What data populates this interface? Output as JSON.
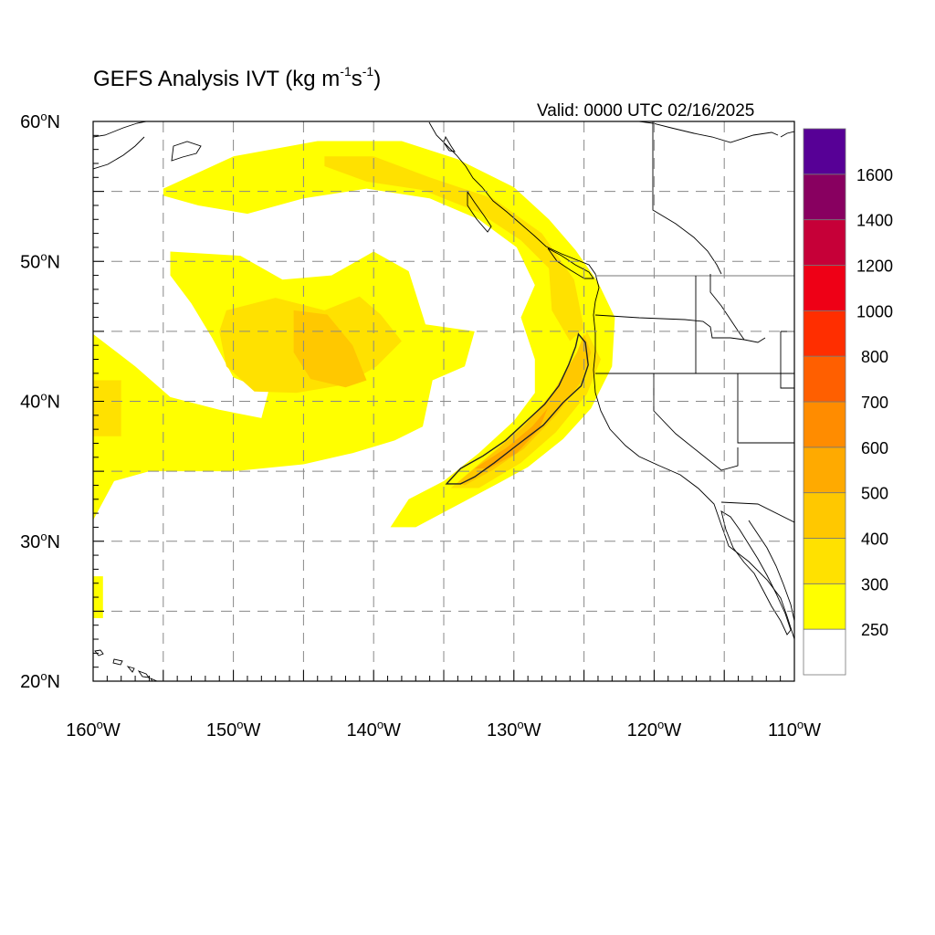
{
  "title": {
    "prefix": "GEFS Analysis IVT (kg m",
    "exp1": "-1",
    "mid": "s",
    "exp2": "-1",
    "suffix": ")"
  },
  "valid_time": "Valid: 0000 UTC 02/16/2025",
  "map": {
    "lon_range": [
      -160,
      -110
    ],
    "lat_range": [
      20,
      60
    ],
    "grid": "dashed, every 5 degrees",
    "lat_labels": [
      {
        "v": 60,
        "t": "60"
      },
      {
        "v": 50,
        "t": "50"
      },
      {
        "v": 40,
        "t": "40"
      },
      {
        "v": 30,
        "t": "30"
      },
      {
        "v": 20,
        "t": "20"
      }
    ],
    "lat_suffix": "N",
    "lon_labels": [
      {
        "v": -160,
        "t": "160"
      },
      {
        "v": -150,
        "t": "150"
      },
      {
        "v": -140,
        "t": "140"
      },
      {
        "v": -130,
        "t": "130"
      },
      {
        "v": -120,
        "t": "120"
      },
      {
        "v": -110,
        "t": "110"
      }
    ],
    "lon_suffix": "W",
    "degree_mark": "o"
  },
  "colorbar": {
    "colors": [
      "#ffffff",
      "#ffff00",
      "#ffe100",
      "#ffc800",
      "#ffaa00",
      "#ff8c00",
      "#ff5f00",
      "#ff2e00",
      "#ee0016",
      "#c60038",
      "#880060",
      "#570096"
    ],
    "labels": [
      "250",
      "300",
      "400",
      "500",
      "600",
      "700",
      "800",
      "1000",
      "1200",
      "1400",
      "1600"
    ]
  },
  "chart_data": {
    "type": "heatmap",
    "variable": "IVT (kg m-1 s-1)",
    "note": "filled IVT regions estimated from image, lon/lat in degrees",
    "regions": [
      {
        "name": "yellow-arc-north",
        "level": 250,
        "poly": [
          [
            -155,
            55.2
          ],
          [
            -150,
            57.5
          ],
          [
            -144,
            58.6
          ],
          [
            -138,
            58.6
          ],
          [
            -134,
            57.3
          ],
          [
            -130,
            55.3
          ],
          [
            -127.5,
            53
          ],
          [
            -125.6,
            50.8
          ],
          [
            -124,
            48.5
          ],
          [
            -122.8,
            46
          ],
          [
            -123,
            42.5
          ],
          [
            -124.5,
            39.5
          ],
          [
            -126.5,
            37.3
          ],
          [
            -129,
            35.3
          ],
          [
            -131,
            34.2
          ],
          [
            -134,
            32.6
          ],
          [
            -137,
            31
          ],
          [
            -138.8,
            31
          ],
          [
            -137.5,
            33
          ],
          [
            -135,
            34.3
          ],
          [
            -132.5,
            36.3
          ],
          [
            -130,
            38.6
          ],
          [
            -128.5,
            40.6
          ],
          [
            -128.5,
            43
          ],
          [
            -129.5,
            46
          ],
          [
            -128.5,
            48.3
          ],
          [
            -129.8,
            51
          ],
          [
            -132.5,
            53
          ],
          [
            -136,
            54.5
          ],
          [
            -140.5,
            55.2
          ],
          [
            -145,
            54.5
          ],
          [
            -149,
            53.4
          ],
          [
            -152.5,
            54
          ],
          [
            -155,
            54.7
          ]
        ]
      },
      {
        "name": "yellow-central-blob",
        "level": 250,
        "poly": [
          [
            -154.5,
            50.7
          ],
          [
            -149.5,
            50.4
          ],
          [
            -146.5,
            48.7
          ],
          [
            -143,
            49
          ],
          [
            -140,
            50.7
          ],
          [
            -137.5,
            49.3
          ],
          [
            -136.3,
            45.5
          ],
          [
            -132.8,
            45
          ],
          [
            -133.5,
            42.5
          ],
          [
            -135.8,
            41.5
          ],
          [
            -136.5,
            38.2
          ],
          [
            -138.5,
            37.2
          ],
          [
            -141.5,
            36.3
          ],
          [
            -145,
            35.5
          ],
          [
            -150,
            35
          ],
          [
            -156,
            35
          ],
          [
            -158.5,
            34.3
          ],
          [
            -160,
            31.5
          ],
          [
            -160,
            44.8
          ],
          [
            -157,
            42.5
          ],
          [
            -154.5,
            40.3
          ],
          [
            -151,
            39.4
          ],
          [
            -148,
            38.8
          ],
          [
            -147.5,
            40.7
          ],
          [
            -150,
            41.7
          ],
          [
            -151.5,
            44.5
          ],
          [
            -153,
            47
          ],
          [
            -154.5,
            49
          ]
        ]
      },
      {
        "name": "yellow-small-strip",
        "level": 250,
        "poly": [
          [
            -160,
            27.5
          ],
          [
            -159.3,
            27.5
          ],
          [
            -159.3,
            24.5
          ],
          [
            -160,
            24.5
          ]
        ]
      },
      {
        "name": "gold-north-arc",
        "level": 300,
        "poly": [
          [
            -143.5,
            57.5
          ],
          [
            -140,
            57.5
          ],
          [
            -136,
            56
          ],
          [
            -131.5,
            54.5
          ],
          [
            -128,
            52
          ],
          [
            -125.7,
            48.7
          ],
          [
            -125,
            45.2
          ],
          [
            -126,
            44.3
          ],
          [
            -127.3,
            46.5
          ],
          [
            -127.5,
            49.5
          ],
          [
            -129.5,
            51.5
          ],
          [
            -132.5,
            53.5
          ],
          [
            -136.5,
            55.1
          ],
          [
            -140.5,
            55.7
          ],
          [
            -143.5,
            56.8
          ]
        ]
      },
      {
        "name": "gold-central",
        "level": 300,
        "poly": [
          [
            -150.5,
            46.5
          ],
          [
            -147,
            47.4
          ],
          [
            -143.5,
            46.5
          ],
          [
            -141,
            47.5
          ],
          [
            -139.5,
            46.2
          ],
          [
            -138,
            44.3
          ],
          [
            -139.8,
            42.5
          ],
          [
            -142,
            41.2
          ],
          [
            -145.5,
            40.6
          ],
          [
            -148.5,
            40.7
          ],
          [
            -150.5,
            42.5
          ],
          [
            -151,
            45
          ]
        ]
      },
      {
        "name": "gold-west-patch",
        "level": 300,
        "poly": [
          [
            -160,
            41.5
          ],
          [
            -158,
            41.5
          ],
          [
            -158,
            37.5
          ],
          [
            -160,
            37.5
          ]
        ]
      },
      {
        "name": "gold-ar-band",
        "level": 300,
        "poly": [
          [
            -134.5,
            33.8
          ],
          [
            -131,
            36.8
          ],
          [
            -128.5,
            39.2
          ],
          [
            -126,
            42
          ],
          [
            -124.8,
            45
          ],
          [
            -123.8,
            43
          ],
          [
            -124.8,
            40.5
          ],
          [
            -127,
            37.8
          ],
          [
            -129.5,
            35.6
          ],
          [
            -132.5,
            33.8
          ]
        ]
      },
      {
        "name": "orange-central",
        "level": 400,
        "poly": [
          [
            -145.7,
            46.5
          ],
          [
            -143.3,
            46.2
          ],
          [
            -141.5,
            44
          ],
          [
            -140.5,
            41.5
          ],
          [
            -142,
            41
          ],
          [
            -144.5,
            41.6
          ],
          [
            -145.7,
            43.5
          ]
        ]
      },
      {
        "name": "orange-ar",
        "level": 400,
        "poly": [
          [
            -134,
            34.2
          ],
          [
            -131.5,
            36.3
          ],
          [
            -129.3,
            38.2
          ],
          [
            -127.3,
            40.5
          ],
          [
            -125.5,
            43.5
          ],
          [
            -125,
            44.8
          ],
          [
            -124.5,
            43.5
          ],
          [
            -125.2,
            41.4
          ],
          [
            -127,
            39
          ],
          [
            -129.3,
            36.6
          ],
          [
            -131.5,
            35.1
          ],
          [
            -133.5,
            34
          ]
        ]
      },
      {
        "name": "dark-orange-core",
        "level": 500,
        "poly": [
          [
            -132.8,
            35.2
          ],
          [
            -130.5,
            36.7
          ],
          [
            -128.7,
            38.2
          ],
          [
            -127.6,
            39.5
          ],
          [
            -128.2,
            38
          ],
          [
            -129.8,
            36.3
          ],
          [
            -131.8,
            35.2
          ]
        ]
      }
    ],
    "contour": {
      "level": 500,
      "poly": [
        [
          -134.8,
          34.1
        ],
        [
          -133.8,
          35.2
        ],
        [
          -132.2,
          36.1
        ],
        [
          -130.6,
          37.2
        ],
        [
          -129.2,
          38.5
        ],
        [
          -127.8,
          39.8
        ],
        [
          -126.8,
          41.1
        ],
        [
          -126.1,
          42.6
        ],
        [
          -125.6,
          43.9
        ],
        [
          -125.4,
          44.8
        ],
        [
          -124.9,
          44.2
        ],
        [
          -124.7,
          42.6
        ],
        [
          -125.2,
          41.1
        ],
        [
          -126.5,
          39.9
        ],
        [
          -127.9,
          38.3
        ],
        [
          -129.6,
          37
        ],
        [
          -131.4,
          35.6
        ],
        [
          -132.8,
          34.6
        ],
        [
          -133.8,
          34.1
        ]
      ]
    }
  }
}
